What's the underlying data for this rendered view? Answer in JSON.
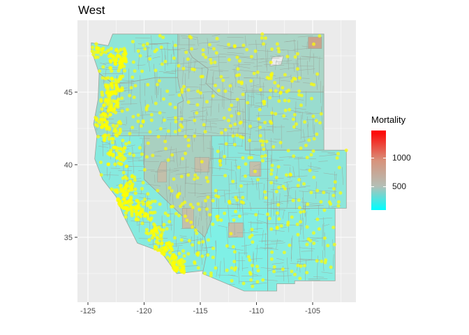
{
  "title": "West",
  "legend": {
    "title": "Mortality",
    "labels": [
      "1000",
      "500"
    ],
    "colors": {
      "low": "#00ffff",
      "mid": "#b4bfb6",
      "high": "#ff0000"
    }
  },
  "axes": {
    "x_ticks": [
      "-125",
      "-120",
      "-115",
      "-110",
      "-105"
    ],
    "y_ticks": [
      "45",
      "40",
      "35"
    ],
    "xlim": [
      -125.5,
      -101.0
    ],
    "ylim": [
      31.0,
      49.7
    ]
  },
  "colors": {
    "panel": "#ebebeb",
    "grid": "#ffffff",
    "county_fill": "#7aefe6",
    "county_border": "#9aa59a",
    "points": "#ffff00"
  },
  "chart_data": {
    "type": "map",
    "region": "West",
    "fill_variable": "Mortality",
    "fill_range": [
      200,
      1400
    ],
    "points_color": "yellow"
  }
}
